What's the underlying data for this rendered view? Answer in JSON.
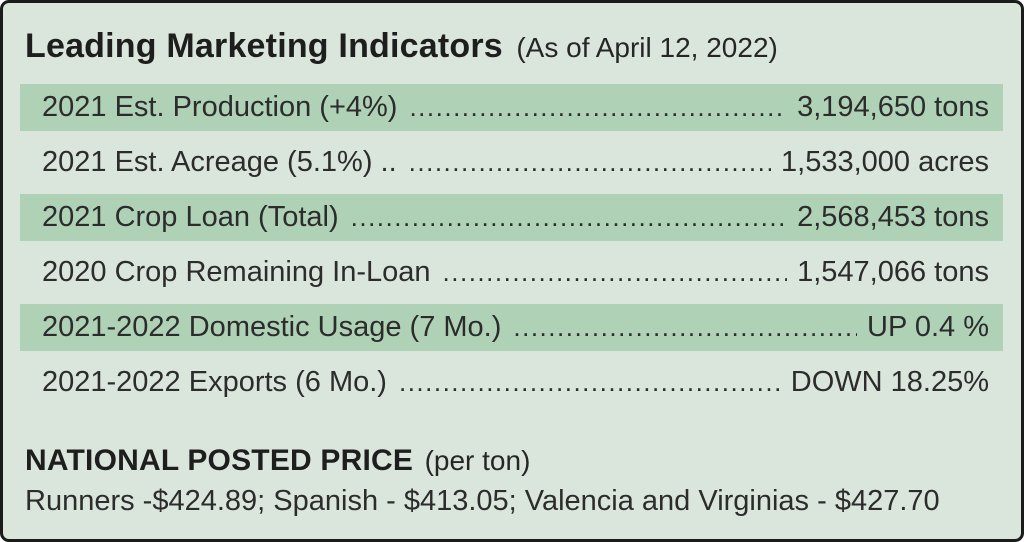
{
  "card": {
    "title": "Leading Marketing Indicators",
    "title_suffix": "(As of April 12, 2022)",
    "rows": [
      {
        "label": "2021 Est. Production (+4%)",
        "value": "3,194,650 tons",
        "highlighted": true
      },
      {
        "label": "2021 Est. Acreage (5.1%) ..",
        "value": "1,533,000 acres",
        "highlighted": false
      },
      {
        "label": "2021 Crop Loan (Total)",
        "value": "2,568,453 tons",
        "highlighted": true
      },
      {
        "label": "2020 Crop Remaining In-Loan",
        "value": "1,547,066 tons",
        "highlighted": false
      },
      {
        "label": "2021-2022 Domestic Usage (7 Mo.)",
        "value": "UP 0.4 %",
        "highlighted": true
      },
      {
        "label": "2021-2022 Exports (6 Mo.)",
        "value": "DOWN 18.25%",
        "highlighted": false
      }
    ],
    "footer": {
      "heading": "NATIONAL POSTED PRICE",
      "heading_suffix": "(per ton)",
      "prices_line": "Runners -$424.89; Spanish - $413.05; Valencia and Virginias - $427.70"
    },
    "colors": {
      "background": "#dae6db",
      "highlight_band": "#afd2b6",
      "border": "#1b1b1b",
      "text": "#2c2c2c"
    }
  }
}
